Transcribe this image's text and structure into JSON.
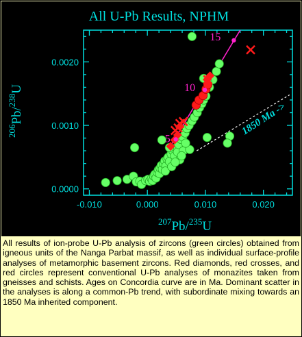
{
  "chart_data": {
    "type": "scatter",
    "title": "All U-Pb Results, NPHM",
    "xlabel_sup1": "207",
    "xlabel_mid": "Pb/",
    "xlabel_sup2": "235",
    "xlabel_end": "U",
    "ylabel_sup1": "206",
    "ylabel_mid": "Pb/",
    "ylabel_sup2": "238",
    "ylabel_end": "U",
    "xlim": [
      -0.011,
      0.025
    ],
    "ylim": [
      -0.0001,
      0.0025
    ],
    "x_ticks": [
      -0.01,
      0.0,
      0.01,
      0.02
    ],
    "x_tick_labels": [
      "-0.010",
      "0.000",
      "0.010",
      "0.020"
    ],
    "y_ticks": [
      0.0,
      0.001,
      0.002
    ],
    "y_tick_labels": [
      "0.0000",
      "0.0010",
      "0.0020"
    ],
    "colors": {
      "background": "#000000",
      "axes": "#00e0e0",
      "title": "#00e0e0",
      "zircon": "#66ff66",
      "zircon_edge": "#22aa22",
      "red": "#ff1a1a",
      "concordia": "#ff22cc",
      "trend": "#ffffff",
      "age_label": "#00e0e0"
    },
    "concordia": {
      "ages": [
        5,
        10,
        15
      ],
      "age_labels": [
        "5",
        "10",
        "15"
      ],
      "points": [
        [
          0.0049,
          0.00078
        ],
        [
          0.0099,
          0.00156
        ],
        [
          0.0149,
          0.00234
        ]
      ],
      "line": [
        [
          0.0035,
          0.0006
        ],
        [
          0.016,
          0.0025
        ]
      ]
    },
    "inherited_trend": {
      "label": "1850 Ma ->",
      "line": [
        [
          0.0085,
          0.0006
        ],
        [
          0.0245,
          0.00148
        ]
      ]
    },
    "series": [
      {
        "marker": "zircon-circle",
        "points": [
          [
            -0.0072,
            0.0001
          ],
          [
            -0.0052,
            0.00013
          ],
          [
            -0.0035,
            0.00015
          ],
          [
            -0.0024,
            0.0002
          ],
          [
            -0.0019,
            0.00011
          ],
          [
            -0.0013,
            0.00012
          ],
          [
            -0.001,
            7e-05
          ],
          [
            -0.0003,
            0.00013
          ],
          [
            0.0001,
            0.00015
          ],
          [
            0.0004,
            0.00012
          ],
          [
            0.0007,
            0.00016
          ],
          [
            0.0009,
            0.00013
          ],
          [
            0.0011,
            0.0002
          ],
          [
            0.0013,
            0.00023
          ],
          [
            0.0015,
            0.00017
          ],
          [
            0.0017,
            0.00026
          ],
          [
            0.0019,
            0.0003
          ],
          [
            0.0021,
            0.00024
          ],
          [
            0.0022,
            0.00033
          ],
          [
            0.0024,
            0.00037
          ],
          [
            0.0026,
            0.00031
          ],
          [
            0.0028,
            0.0004
          ],
          [
            0.003,
            0.00044
          ],
          [
            0.0032,
            0.00036
          ],
          [
            0.0034,
            0.00047
          ],
          [
            0.0036,
            0.0005
          ],
          [
            0.0038,
            0.00043
          ],
          [
            0.0041,
            0.00055
          ],
          [
            0.0044,
            0.0006
          ],
          [
            0.0047,
            0.00052
          ],
          [
            0.005,
            0.00065
          ],
          [
            0.0052,
            0.00058
          ],
          [
            0.0056,
            0.00046
          ],
          [
            0.0054,
            0.0007
          ],
          [
            0.0058,
            0.00078
          ],
          [
            0.0061,
            0.00082
          ],
          [
            0.0065,
            0.00088
          ],
          [
            0.0068,
            0.00095
          ],
          [
            0.0072,
            0.001
          ],
          [
            0.0077,
            0.00107
          ],
          [
            0.0081,
            0.00113
          ],
          [
            0.0086,
            0.0012
          ],
          [
            0.009,
            0.00128
          ],
          [
            0.0094,
            0.00134
          ],
          [
            0.0097,
            0.0014
          ],
          [
            0.0101,
            0.00146
          ],
          [
            0.0107,
            0.0016
          ],
          [
            0.0113,
            0.00172
          ],
          [
            0.0119,
            0.00185
          ],
          [
            0.0124,
            0.00197
          ],
          [
            0.0104,
            0.00168
          ],
          [
            0.0097,
            0.00174
          ],
          [
            0.0062,
            0.0006
          ],
          [
            0.0059,
            0.00052
          ],
          [
            0.0038,
            0.00065
          ],
          [
            0.0025,
            0.00077
          ],
          [
            -0.0022,
            0.00065
          ],
          [
            0.0073,
            0.00062
          ],
          [
            0.0103,
            0.00081
          ],
          [
            0.0142,
            0.00083
          ],
          [
            0.0138,
            0.00072
          ],
          [
            0.0077,
            0.0024
          ],
          [
            0.0031,
            0.00028
          ],
          [
            0.0042,
            0.00035
          ],
          [
            0.0048,
            0.00042
          ],
          [
            0.0066,
            0.00072
          ]
        ]
      },
      {
        "marker": "red-circle",
        "points": [
          [
            0.0084,
            0.00132
          ],
          [
            0.0089,
            0.0014
          ],
          [
            0.0096,
            0.00147
          ],
          [
            0.0101,
            0.00157
          ],
          [
            0.0104,
            0.00164
          ]
        ]
      },
      {
        "marker": "red-diamond",
        "points": [
          [
            0.004,
            0.00067
          ],
          [
            0.0047,
            0.00077
          ],
          [
            0.0052,
            0.00085
          ],
          [
            0.0056,
            0.00098
          ],
          [
            0.0103,
            0.00172
          ],
          [
            0.0108,
            0.00178
          ]
        ]
      },
      {
        "marker": "red-cross",
        "points": [
          [
            0.0048,
            0.00092
          ],
          [
            0.0053,
            0.00096
          ],
          [
            0.0056,
            0.00103
          ],
          [
            0.0062,
            0.00106
          ],
          [
            0.0104,
            0.00172
          ],
          [
            0.0178,
            0.00219
          ]
        ]
      }
    ]
  },
  "caption": "All results of ion-probe U-Pb analysis of zircons (green circles) obtained from igneous units of the Nanga Parbat massif, as well as individual surface-profile analyses of metamorphic basement zircons. Red diamonds, red crosses, and red circles represent conventional U-Pb analyses of monazites taken from gneisses and schists. Ages on Concordia curve are in Ma. Dominant scatter in the analyses is along a common-Pb trend, with subordinate mixing towards an 1850 Ma inherited component."
}
